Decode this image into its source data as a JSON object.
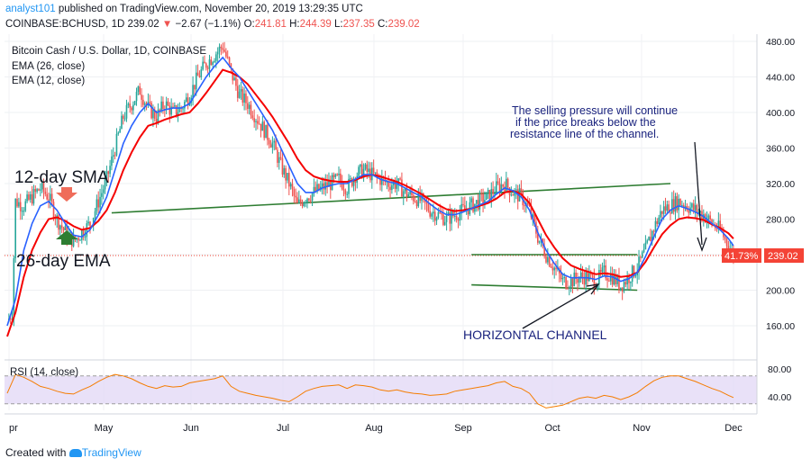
{
  "header": {
    "user": "analyst101",
    "published": "published on TradingView.com, November 20, 2019 13:29:35 UTC",
    "symbol": "COINBASE:BCHUSD, 1D",
    "last": "239.02",
    "change_arrow": "▼",
    "change": "−2.67 (−1.1%)",
    "o_label": "O:",
    "o_value": "241.81",
    "h_label": "H:",
    "h_value": "244.39",
    "l_label": "L:",
    "l_value": "237.35",
    "c_label": "C:",
    "c_value": "239.02"
  },
  "legend": {
    "title": "Bitcoin Cash / U.S. Dollar, 1D, COINBASE",
    "ema26": "EMA (26, close)",
    "ema12": "EMA (12, close)"
  },
  "annotations": {
    "sma12": "12-day SMA",
    "ema26": "26-day EMA",
    "selling_1": "The selling pressure will continue",
    "selling_2": "if the price breaks below the",
    "selling_3": "resistance line of the channel.",
    "horizontal_channel": "HORIZONTAL CHANNEL"
  },
  "price_axis": {
    "ticks": [
      "480.00",
      "440.00",
      "400.00",
      "360.00",
      "320.00",
      "280.00",
      "240.00",
      "200.00",
      "160.00"
    ],
    "pct_label": "41.73%",
    "price_label": "239.02"
  },
  "rsi": {
    "label": "RSI (14, close)",
    "ticks": [
      "80.00",
      "40.00"
    ]
  },
  "time_axis": {
    "labels": [
      "pr",
      "May",
      "Jun",
      "Jul",
      "Aug",
      "Sep",
      "Oct",
      "Nov",
      "Dec"
    ]
  },
  "footer": {
    "created_with": "Created with",
    "brand": "TradingView"
  },
  "colors": {
    "up": "#26a69a",
    "down": "#ef5350",
    "ema12": "#2962ff",
    "ema26": "#f50000",
    "trend": "#2e7d32",
    "rsi": "#f57c00",
    "rsi_band": "#e1d7f5"
  },
  "chart_data": {
    "type": "line",
    "xlabel": "",
    "ylabel": "",
    "ylim": [
      140,
      490
    ],
    "rsi_ylim": [
      10,
      90
    ],
    "rsi_band": [
      30,
      70
    ],
    "last_price": 239.02,
    "months": [
      "Apr",
      "May",
      "Jun",
      "Jul",
      "Aug",
      "Sep",
      "Oct",
      "Nov",
      "Dec"
    ],
    "close_path": [
      [
        0,
        165
      ],
      [
        3,
        175
      ],
      [
        5,
        300
      ],
      [
        10,
        295
      ],
      [
        15,
        305
      ],
      [
        20,
        315
      ],
      [
        25,
        305
      ],
      [
        30,
        280
      ],
      [
        35,
        265
      ],
      [
        40,
        255
      ],
      [
        45,
        265
      ],
      [
        50,
        275
      ],
      [
        55,
        300
      ],
      [
        60,
        325
      ],
      [
        65,
        360
      ],
      [
        70,
        395
      ],
      [
        75,
        410
      ],
      [
        80,
        425
      ],
      [
        85,
        405
      ],
      [
        90,
        395
      ],
      [
        95,
        410
      ],
      [
        100,
        400
      ],
      [
        105,
        405
      ],
      [
        110,
        420
      ],
      [
        115,
        440
      ],
      [
        120,
        455
      ],
      [
        125,
        465
      ],
      [
        130,
        475
      ],
      [
        135,
        445
      ],
      [
        140,
        420
      ],
      [
        145,
        410
      ],
      [
        150,
        395
      ],
      [
        155,
        380
      ],
      [
        160,
        365
      ],
      [
        165,
        340
      ],
      [
        170,
        320
      ],
      [
        175,
        295
      ],
      [
        180,
        305
      ],
      [
        185,
        310
      ],
      [
        190,
        315
      ],
      [
        195,
        320
      ],
      [
        200,
        325
      ],
      [
        205,
        315
      ],
      [
        210,
        330
      ],
      [
        215,
        335
      ],
      [
        220,
        330
      ],
      [
        225,
        325
      ],
      [
        230,
        320
      ],
      [
        235,
        320
      ],
      [
        240,
        310
      ],
      [
        245,
        305
      ],
      [
        250,
        300
      ],
      [
        255,
        290
      ],
      [
        260,
        285
      ],
      [
        265,
        280
      ],
      [
        270,
        285
      ],
      [
        275,
        290
      ],
      [
        280,
        295
      ],
      [
        285,
        300
      ],
      [
        290,
        305
      ],
      [
        295,
        315
      ],
      [
        300,
        320
      ],
      [
        305,
        310
      ],
      [
        310,
        305
      ],
      [
        315,
        290
      ],
      [
        320,
        260
      ],
      [
        325,
        240
      ],
      [
        330,
        225
      ],
      [
        335,
        210
      ],
      [
        340,
        210
      ],
      [
        345,
        215
      ],
      [
        350,
        215
      ],
      [
        355,
        210
      ],
      [
        360,
        220
      ],
      [
        365,
        215
      ],
      [
        370,
        205
      ],
      [
        375,
        215
      ],
      [
        380,
        225
      ],
      [
        385,
        245
      ],
      [
        390,
        270
      ],
      [
        395,
        290
      ],
      [
        400,
        295
      ],
      [
        405,
        300
      ],
      [
        410,
        295
      ],
      [
        415,
        290
      ],
      [
        420,
        285
      ],
      [
        425,
        275
      ],
      [
        430,
        268
      ],
      [
        435,
        250
      ],
      [
        438,
        239
      ]
    ],
    "ema12_path": [
      [
        0,
        160
      ],
      [
        5,
        190
      ],
      [
        10,
        245
      ],
      [
        15,
        275
      ],
      [
        20,
        295
      ],
      [
        25,
        300
      ],
      [
        30,
        290
      ],
      [
        35,
        275
      ],
      [
        40,
        262
      ],
      [
        45,
        260
      ],
      [
        50,
        268
      ],
      [
        55,
        285
      ],
      [
        60,
        305
      ],
      [
        65,
        335
      ],
      [
        70,
        365
      ],
      [
        75,
        385
      ],
      [
        80,
        400
      ],
      [
        85,
        410
      ],
      [
        90,
        400
      ],
      [
        95,
        403
      ],
      [
        100,
        405
      ],
      [
        105,
        405
      ],
      [
        110,
        410
      ],
      [
        115,
        425
      ],
      [
        120,
        440
      ],
      [
        125,
        452
      ],
      [
        130,
        462
      ],
      [
        135,
        450
      ],
      [
        140,
        440
      ],
      [
        145,
        425
      ],
      [
        150,
        410
      ],
      [
        155,
        395
      ],
      [
        160,
        380
      ],
      [
        165,
        360
      ],
      [
        170,
        340
      ],
      [
        175,
        320
      ],
      [
        180,
        310
      ],
      [
        185,
        310
      ],
      [
        190,
        315
      ],
      [
        195,
        318
      ],
      [
        200,
        320
      ],
      [
        205,
        320
      ],
      [
        210,
        325
      ],
      [
        215,
        330
      ],
      [
        220,
        330
      ],
      [
        225,
        325
      ],
      [
        230,
        322
      ],
      [
        235,
        320
      ],
      [
        240,
        315
      ],
      [
        245,
        310
      ],
      [
        250,
        305
      ],
      [
        255,
        297
      ],
      [
        260,
        290
      ],
      [
        265,
        285
      ],
      [
        270,
        285
      ],
      [
        275,
        288
      ],
      [
        280,
        292
      ],
      [
        285,
        296
      ],
      [
        290,
        300
      ],
      [
        295,
        308
      ],
      [
        300,
        315
      ],
      [
        305,
        312
      ],
      [
        310,
        305
      ],
      [
        315,
        290
      ],
      [
        320,
        265
      ],
      [
        325,
        245
      ],
      [
        330,
        230
      ],
      [
        335,
        218
      ],
      [
        340,
        214
      ],
      [
        345,
        214
      ],
      [
        350,
        214
      ],
      [
        355,
        212
      ],
      [
        360,
        216
      ],
      [
        365,
        215
      ],
      [
        370,
        210
      ],
      [
        375,
        213
      ],
      [
        380,
        220
      ],
      [
        385,
        238
      ],
      [
        390,
        260
      ],
      [
        395,
        280
      ],
      [
        400,
        290
      ],
      [
        405,
        295
      ],
      [
        410,
        292
      ],
      [
        415,
        288
      ],
      [
        420,
        283
      ],
      [
        425,
        275
      ],
      [
        430,
        268
      ],
      [
        435,
        258
      ],
      [
        438,
        250
      ]
    ],
    "ema26_path": [
      [
        0,
        148
      ],
      [
        5,
        175
      ],
      [
        10,
        215
      ],
      [
        15,
        245
      ],
      [
        20,
        265
      ],
      [
        25,
        280
      ],
      [
        30,
        282
      ],
      [
        35,
        278
      ],
      [
        40,
        272
      ],
      [
        45,
        268
      ],
      [
        50,
        270
      ],
      [
        55,
        278
      ],
      [
        60,
        290
      ],
      [
        65,
        310
      ],
      [
        70,
        335
      ],
      [
        75,
        355
      ],
      [
        80,
        372
      ],
      [
        85,
        385
      ],
      [
        90,
        388
      ],
      [
        95,
        392
      ],
      [
        100,
        395
      ],
      [
        105,
        398
      ],
      [
        110,
        400
      ],
      [
        115,
        410
      ],
      [
        120,
        422
      ],
      [
        125,
        435
      ],
      [
        130,
        448
      ],
      [
        135,
        445
      ],
      [
        140,
        440
      ],
      [
        145,
        432
      ],
      [
        150,
        420
      ],
      [
        155,
        408
      ],
      [
        160,
        395
      ],
      [
        165,
        380
      ],
      [
        170,
        365
      ],
      [
        175,
        348
      ],
      [
        180,
        335
      ],
      [
        185,
        328
      ],
      [
        190,
        325
      ],
      [
        195,
        323
      ],
      [
        200,
        322
      ],
      [
        205,
        322
      ],
      [
        210,
        324
      ],
      [
        215,
        328
      ],
      [
        220,
        330
      ],
      [
        225,
        328
      ],
      [
        230,
        325
      ],
      [
        235,
        322
      ],
      [
        240,
        318
      ],
      [
        245,
        313
      ],
      [
        250,
        308
      ],
      [
        255,
        302
      ],
      [
        260,
        296
      ],
      [
        265,
        291
      ],
      [
        270,
        289
      ],
      [
        275,
        290
      ],
      [
        280,
        292
      ],
      [
        285,
        295
      ],
      [
        290,
        298
      ],
      [
        295,
        303
      ],
      [
        300,
        310
      ],
      [
        305,
        312
      ],
      [
        310,
        308
      ],
      [
        315,
        298
      ],
      [
        320,
        280
      ],
      [
        325,
        262
      ],
      [
        330,
        248
      ],
      [
        335,
        236
      ],
      [
        340,
        228
      ],
      [
        345,
        224
      ],
      [
        350,
        221
      ],
      [
        355,
        218
      ],
      [
        360,
        219
      ],
      [
        365,
        218
      ],
      [
        370,
        215
      ],
      [
        375,
        216
      ],
      [
        380,
        220
      ],
      [
        385,
        232
      ],
      [
        390,
        248
      ],
      [
        395,
        263
      ],
      [
        400,
        273
      ],
      [
        405,
        280
      ],
      [
        410,
        282
      ],
      [
        415,
        281
      ],
      [
        420,
        279
      ],
      [
        425,
        274
      ],
      [
        430,
        270
      ],
      [
        435,
        264
      ],
      [
        438,
        258
      ]
    ],
    "trend_lines": {
      "resistance": [
        [
          63,
          287
        ],
        [
          400,
          320
        ]
      ],
      "channel_top": [
        [
          280,
          240
        ],
        [
          380,
          240
        ]
      ],
      "channel_bottom": [
        [
          280,
          206
        ],
        [
          380,
          200
        ]
      ]
    },
    "rsi_path": [
      [
        0,
        45
      ],
      [
        5,
        72
      ],
      [
        10,
        68
      ],
      [
        15,
        62
      ],
      [
        20,
        55
      ],
      [
        25,
        52
      ],
      [
        30,
        48
      ],
      [
        35,
        45
      ],
      [
        40,
        44
      ],
      [
        45,
        50
      ],
      [
        50,
        55
      ],
      [
        55,
        62
      ],
      [
        60,
        68
      ],
      [
        65,
        72
      ],
      [
        70,
        70
      ],
      [
        75,
        66
      ],
      [
        80,
        60
      ],
      [
        85,
        55
      ],
      [
        90,
        52
      ],
      [
        95,
        56
      ],
      [
        100,
        54
      ],
      [
        105,
        55
      ],
      [
        110,
        60
      ],
      [
        115,
        62
      ],
      [
        120,
        64
      ],
      [
        125,
        66
      ],
      [
        130,
        70
      ],
      [
        135,
        55
      ],
      [
        140,
        48
      ],
      [
        145,
        45
      ],
      [
        150,
        42
      ],
      [
        155,
        40
      ],
      [
        160,
        38
      ],
      [
        165,
        35
      ],
      [
        170,
        33
      ],
      [
        175,
        40
      ],
      [
        180,
        48
      ],
      [
        185,
        52
      ],
      [
        190,
        55
      ],
      [
        195,
        56
      ],
      [
        200,
        57
      ],
      [
        205,
        52
      ],
      [
        210,
        57
      ],
      [
        215,
        56
      ],
      [
        220,
        54
      ],
      [
        225,
        50
      ],
      [
        230,
        48
      ],
      [
        235,
        50
      ],
      [
        240,
        47
      ],
      [
        245,
        45
      ],
      [
        250,
        44
      ],
      [
        255,
        42
      ],
      [
        260,
        43
      ],
      [
        265,
        44
      ],
      [
        270,
        48
      ],
      [
        275,
        50
      ],
      [
        280,
        52
      ],
      [
        285,
        54
      ],
      [
        290,
        56
      ],
      [
        295,
        60
      ],
      [
        300,
        62
      ],
      [
        305,
        55
      ],
      [
        310,
        52
      ],
      [
        315,
        45
      ],
      [
        320,
        30
      ],
      [
        325,
        24
      ],
      [
        330,
        26
      ],
      [
        335,
        28
      ],
      [
        340,
        33
      ],
      [
        345,
        38
      ],
      [
        350,
        40
      ],
      [
        355,
        38
      ],
      [
        360,
        42
      ],
      [
        365,
        40
      ],
      [
        370,
        36
      ],
      [
        375,
        40
      ],
      [
        380,
        46
      ],
      [
        385,
        55
      ],
      [
        390,
        63
      ],
      [
        395,
        68
      ],
      [
        400,
        70
      ],
      [
        405,
        70
      ],
      [
        410,
        66
      ],
      [
        415,
        62
      ],
      [
        420,
        57
      ],
      [
        425,
        52
      ],
      [
        430,
        48
      ],
      [
        435,
        42
      ],
      [
        438,
        39
      ]
    ]
  }
}
